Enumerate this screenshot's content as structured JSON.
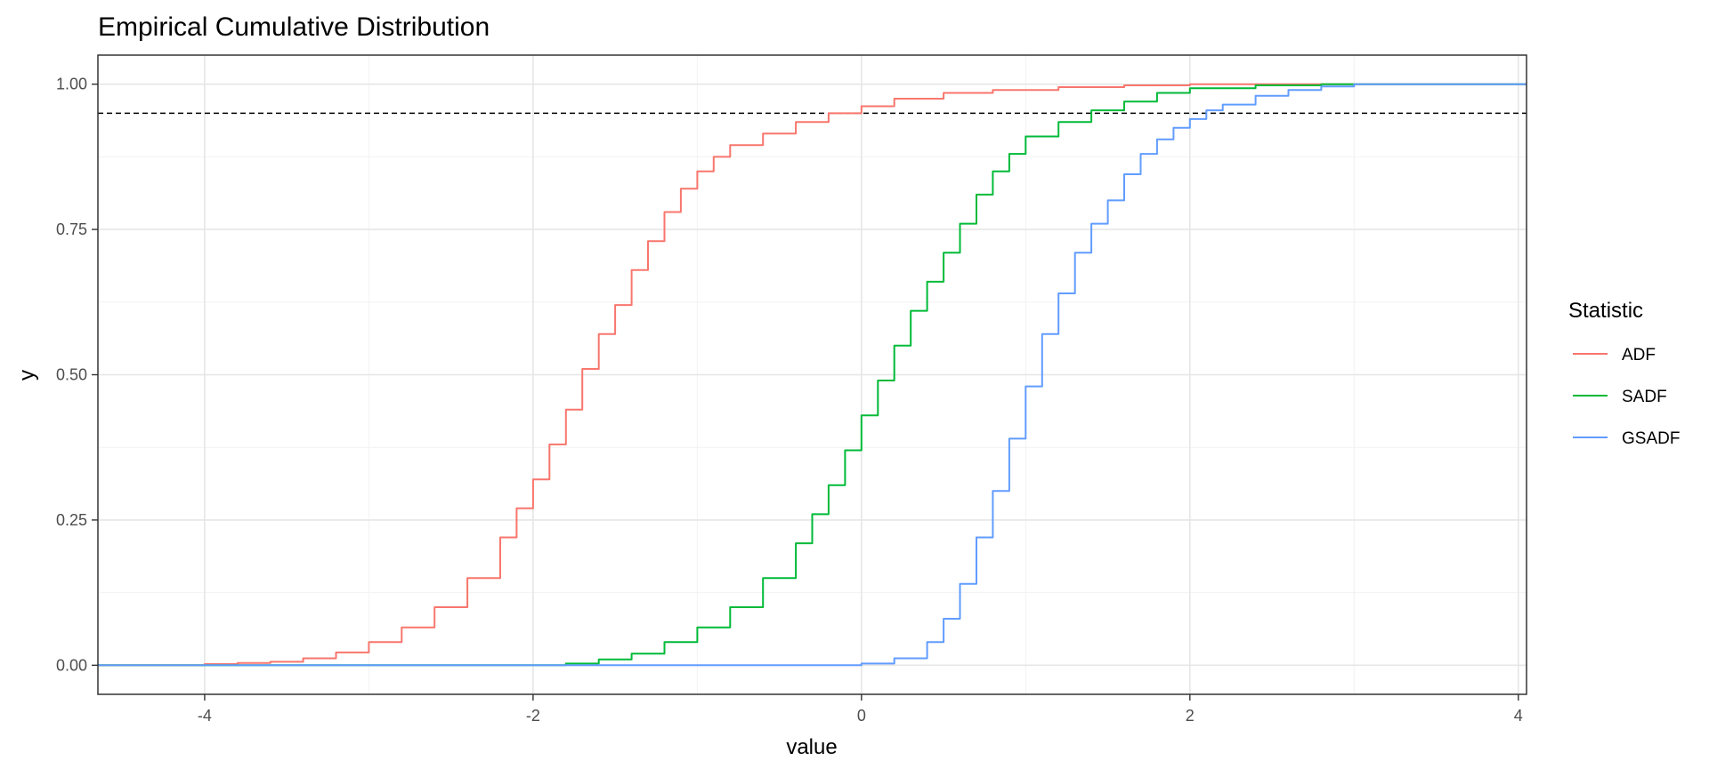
{
  "chart_data": {
    "type": "line",
    "title": "Empirical Cumulative Distribution",
    "xlabel": "value",
    "ylabel": "y",
    "xlim": [
      -4.65,
      4.05
    ],
    "ylim": [
      -0.05,
      1.05
    ],
    "x_ticks": [
      -4,
      -2,
      0,
      2,
      4
    ],
    "x_tick_labels": [
      "-4",
      "-2",
      "0",
      "2",
      "4"
    ],
    "y_ticks": [
      0,
      0.25,
      0.5,
      0.75,
      1
    ],
    "y_tick_labels": [
      "0.00",
      "0.25",
      "0.50",
      "0.75",
      "1.00"
    ],
    "grid": true,
    "legend": {
      "title": "Statistic",
      "position": "right"
    },
    "reference_line": {
      "y": 0.95,
      "style": "dashed",
      "color": "#000000"
    },
    "series": [
      {
        "name": "ADF",
        "color": "#F8766D",
        "points": [
          [
            -4.65,
            0
          ],
          [
            -4.3,
            0
          ],
          [
            -4.0,
            0.002
          ],
          [
            -3.8,
            0.004
          ],
          [
            -3.6,
            0.006
          ],
          [
            -3.4,
            0.012
          ],
          [
            -3.2,
            0.022
          ],
          [
            -3.0,
            0.04
          ],
          [
            -2.8,
            0.065
          ],
          [
            -2.6,
            0.1
          ],
          [
            -2.4,
            0.15
          ],
          [
            -2.2,
            0.22
          ],
          [
            -2.1,
            0.27
          ],
          [
            -2.0,
            0.32
          ],
          [
            -1.9,
            0.38
          ],
          [
            -1.8,
            0.44
          ],
          [
            -1.7,
            0.51
          ],
          [
            -1.6,
            0.57
          ],
          [
            -1.5,
            0.62
          ],
          [
            -1.4,
            0.68
          ],
          [
            -1.3,
            0.73
          ],
          [
            -1.2,
            0.78
          ],
          [
            -1.1,
            0.82
          ],
          [
            -1.0,
            0.85
          ],
          [
            -0.9,
            0.875
          ],
          [
            -0.8,
            0.895
          ],
          [
            -0.6,
            0.915
          ],
          [
            -0.4,
            0.935
          ],
          [
            -0.2,
            0.95
          ],
          [
            0.0,
            0.962
          ],
          [
            0.2,
            0.975
          ],
          [
            0.5,
            0.985
          ],
          [
            0.8,
            0.99
          ],
          [
            1.2,
            0.995
          ],
          [
            1.6,
            0.998
          ],
          [
            2.0,
            1.0
          ],
          [
            4.05,
            1.0
          ]
        ]
      },
      {
        "name": "SADF",
        "color": "#00BA38",
        "points": [
          [
            -4.65,
            0
          ],
          [
            -2.0,
            0
          ],
          [
            -1.8,
            0.003
          ],
          [
            -1.6,
            0.01
          ],
          [
            -1.4,
            0.02
          ],
          [
            -1.2,
            0.04
          ],
          [
            -1.0,
            0.065
          ],
          [
            -0.8,
            0.1
          ],
          [
            -0.6,
            0.15
          ],
          [
            -0.4,
            0.21
          ],
          [
            -0.3,
            0.26
          ],
          [
            -0.2,
            0.31
          ],
          [
            -0.1,
            0.37
          ],
          [
            0.0,
            0.43
          ],
          [
            0.1,
            0.49
          ],
          [
            0.2,
            0.55
          ],
          [
            0.3,
            0.61
          ],
          [
            0.4,
            0.66
          ],
          [
            0.5,
            0.71
          ],
          [
            0.6,
            0.76
          ],
          [
            0.7,
            0.81
          ],
          [
            0.8,
            0.85
          ],
          [
            0.9,
            0.88
          ],
          [
            1.0,
            0.91
          ],
          [
            1.2,
            0.935
          ],
          [
            1.4,
            0.955
          ],
          [
            1.6,
            0.97
          ],
          [
            1.8,
            0.985
          ],
          [
            2.0,
            0.993
          ],
          [
            2.4,
            0.998
          ],
          [
            2.8,
            1.0
          ],
          [
            4.05,
            1.0
          ]
        ]
      },
      {
        "name": "GSADF",
        "color": "#619CFF",
        "points": [
          [
            -4.65,
            0
          ],
          [
            -0.5,
            0
          ],
          [
            0.0,
            0.003
          ],
          [
            0.2,
            0.012
          ],
          [
            0.4,
            0.04
          ],
          [
            0.5,
            0.08
          ],
          [
            0.6,
            0.14
          ],
          [
            0.7,
            0.22
          ],
          [
            0.8,
            0.3
          ],
          [
            0.9,
            0.39
          ],
          [
            1.0,
            0.48
          ],
          [
            1.1,
            0.57
          ],
          [
            1.2,
            0.64
          ],
          [
            1.3,
            0.71
          ],
          [
            1.4,
            0.76
          ],
          [
            1.5,
            0.8
          ],
          [
            1.6,
            0.845
          ],
          [
            1.7,
            0.88
          ],
          [
            1.8,
            0.905
          ],
          [
            1.9,
            0.925
          ],
          [
            2.0,
            0.94
          ],
          [
            2.1,
            0.955
          ],
          [
            2.2,
            0.965
          ],
          [
            2.4,
            0.98
          ],
          [
            2.6,
            0.99
          ],
          [
            2.8,
            0.996
          ],
          [
            3.0,
            1.0
          ],
          [
            4.05,
            1.0
          ]
        ]
      }
    ]
  }
}
